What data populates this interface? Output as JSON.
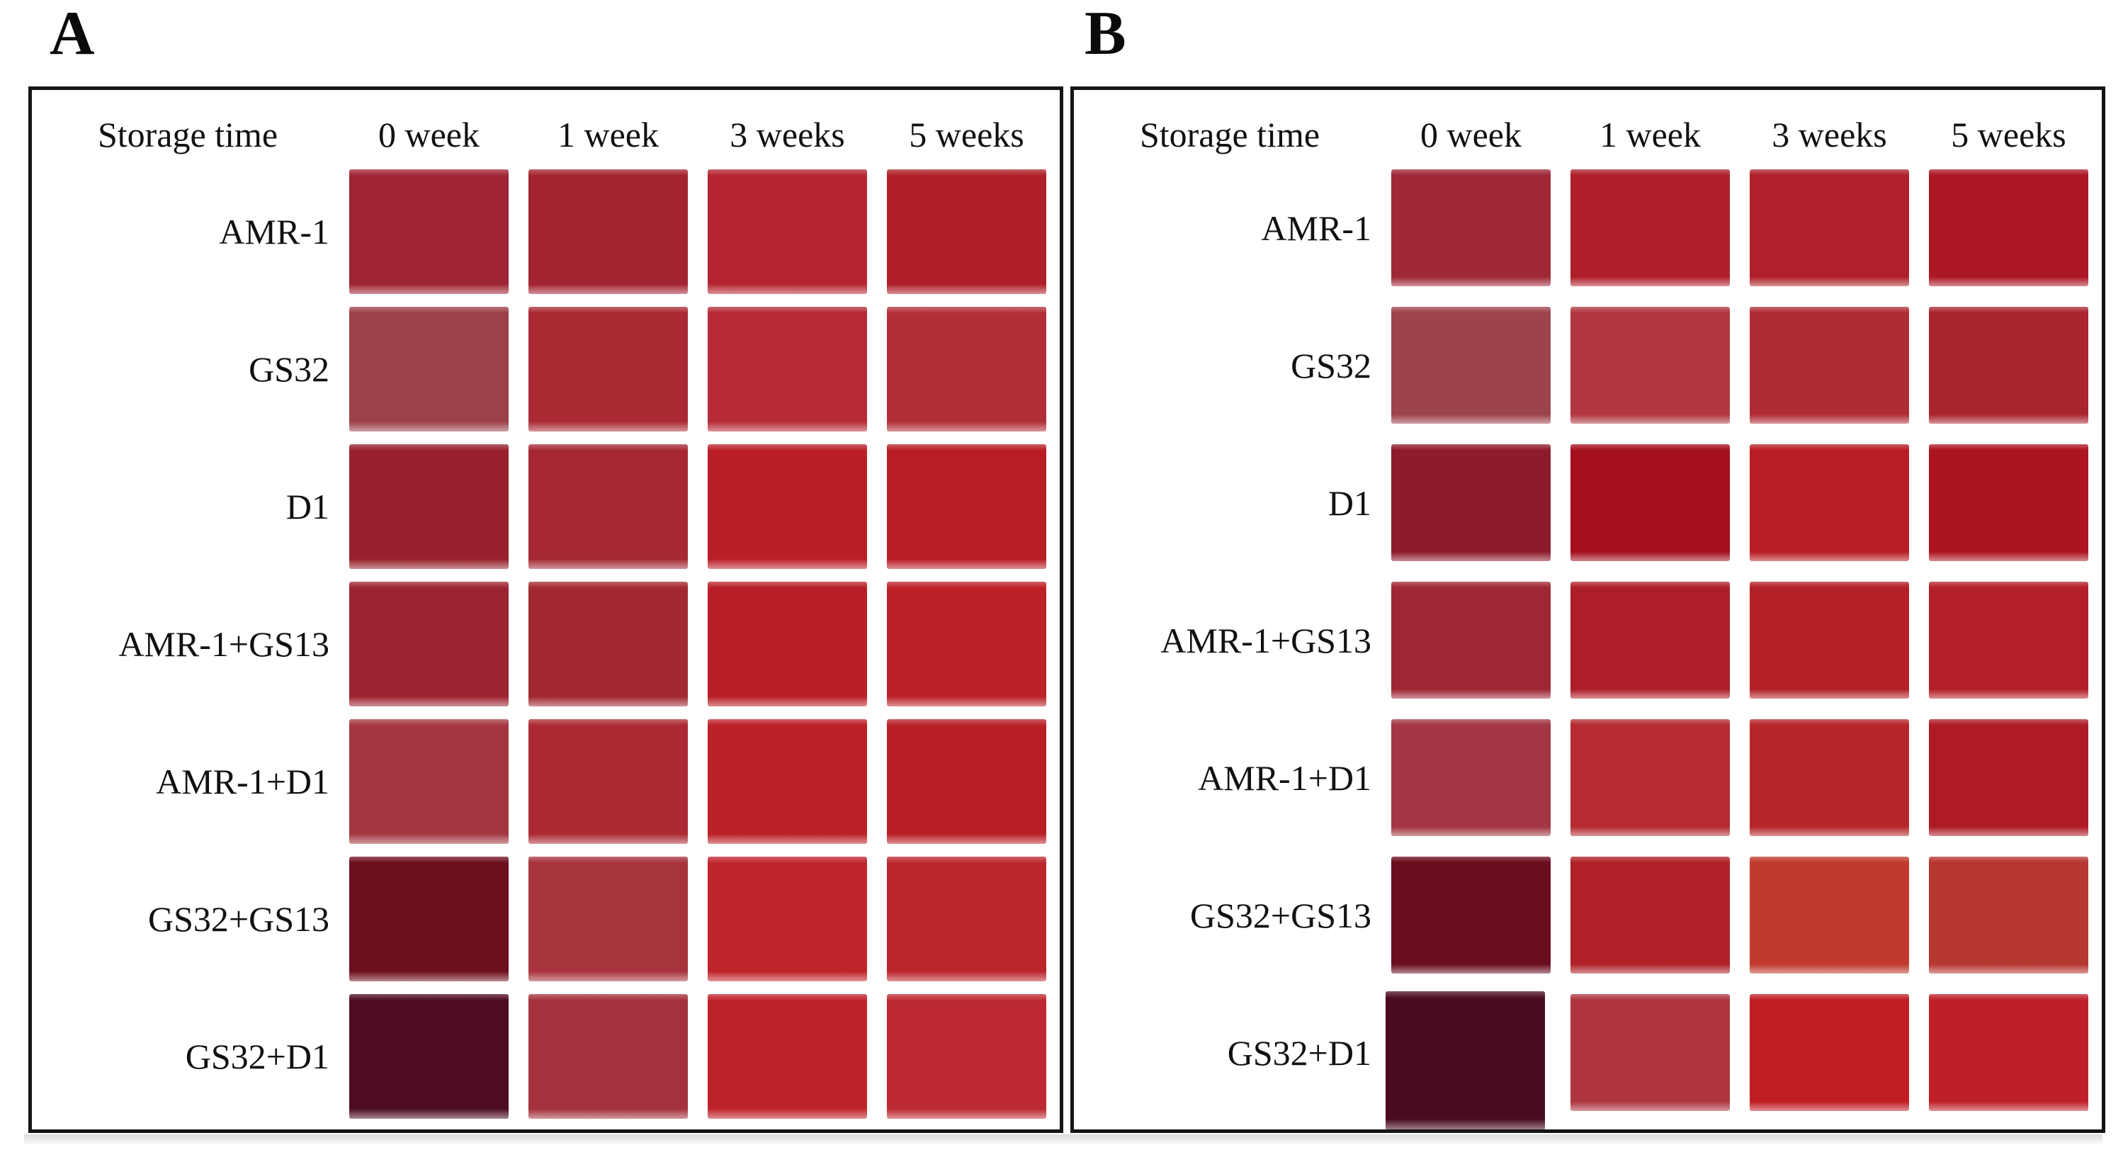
{
  "figure": {
    "panel_a_letter": "A",
    "panel_b_letter": "B"
  },
  "chart_data": [
    {
      "type": "heatmap",
      "panel": "A",
      "header": [
        "Storage time",
        "0 week",
        "1 week",
        "3 weeks",
        "5 weeks"
      ],
      "samples": [
        "AMR-1",
        "GS32",
        "D1",
        "AMR-1+GS13",
        "AMR-1+D1",
        "GS32+GS13",
        "GS32+D1"
      ],
      "cell_colors": [
        [
          "#9f2433",
          "#a22430",
          "#b52531",
          "#b01f28"
        ],
        [
          "#9c4148",
          "#aa2a34",
          "#b62b35",
          "#b22e37"
        ],
        [
          "#97202c",
          "#a52834",
          "#ba1f27",
          "#b81c24"
        ],
        [
          "#9c2431",
          "#a12830",
          "#b91f26",
          "#bb2127"
        ],
        [
          "#a33740",
          "#ac2a33",
          "#bc2127",
          "#b92025"
        ],
        [
          "#6e0f1e",
          "#a7333d",
          "#c0242b",
          "#bb262c"
        ],
        [
          "#4d0c22",
          "#a3323d",
          "#bf232a",
          "#bc2930"
        ]
      ]
    },
    {
      "type": "heatmap",
      "panel": "B",
      "header": [
        "Storage time",
        "0 week",
        "1 week",
        "3 weeks",
        "5 weeks"
      ],
      "samples": [
        "AMR-1",
        "GS32",
        "D1",
        "AMR-1+GS13",
        "AMR-1+D1",
        "GS32+GS13",
        "GS32+D1"
      ],
      "cell_colors": [
        [
          "#9f2736",
          "#ae1f29",
          "#b0202a",
          "#ab1824"
        ],
        [
          "#9d434b",
          "#b13640",
          "#b02c35",
          "#aa242f"
        ],
        [
          "#8e1b2b",
          "#a50f1e",
          "#b81c24",
          "#ac1420"
        ],
        [
          "#9f2633",
          "#ae1e28",
          "#b32026",
          "#b31f27"
        ],
        [
          "#a33642",
          "#b52b31",
          "#b6262a",
          "#ae1b24"
        ],
        [
          "#6a0d1e",
          "#b02027",
          "#bf3a2d",
          "#b63630"
        ],
        [
          "#4a0b20",
          "#ae3540",
          "#c11d24",
          "#bf2028"
        ]
      ]
    }
  ],
  "colors": {
    "panel_border": "#151515",
    "background": "#ffffff",
    "bottom_shadow": "#dcdcdc",
    "text": "#111111"
  }
}
